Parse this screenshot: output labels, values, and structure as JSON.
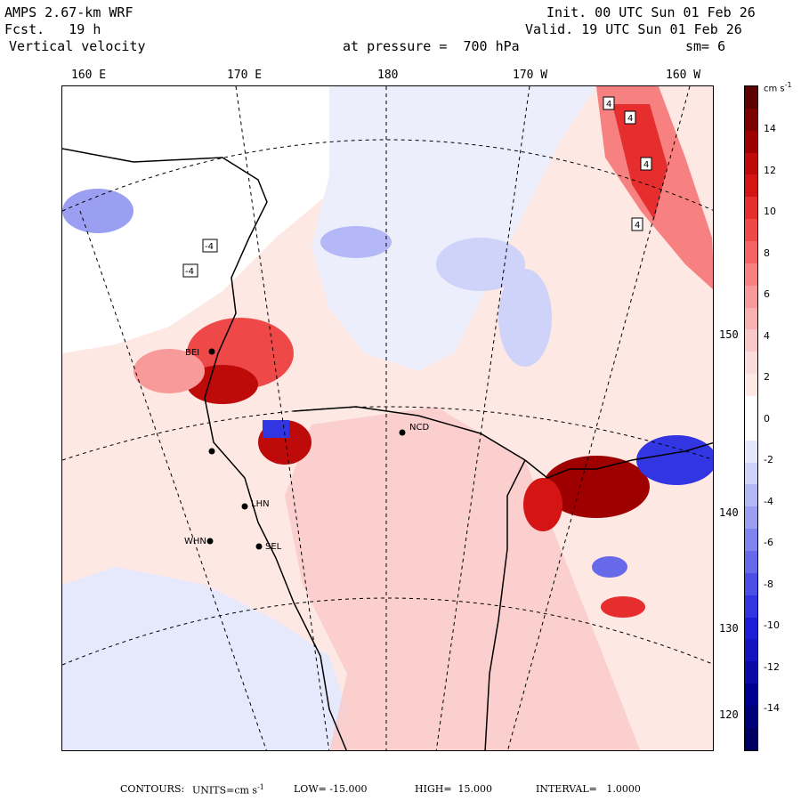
{
  "header": {
    "model": "AMPS 2.67-km WRF",
    "forecast": "Fcst.   19 h",
    "variable": "Vertical velocity",
    "init": "Init. 00 UTC Sun 01 Feb 26",
    "valid": "Valid. 19 UTC Sun 01 Feb 26",
    "pressure": "at pressure =  700 hPa",
    "smoothing": "sm= 6"
  },
  "longitude_labels": [
    "160 E",
    "170 E",
    "180",
    "170 W",
    "160 W"
  ],
  "latitude_labels": [
    "150 W",
    "140 W",
    "130 W",
    "120 W"
  ],
  "colorbar": {
    "units": "cm s",
    "units_exp": "-1",
    "tick_labels": [
      "14",
      "12",
      "10",
      "8",
      "6",
      "4",
      "2",
      "0",
      "-2",
      "-4",
      "-6",
      "-8",
      "-10",
      "-12",
      "-14"
    ],
    "colors_top_to_bottom": [
      "#5c0000",
      "#7d0000",
      "#9e0000",
      "#bf0a0a",
      "#d51414",
      "#e62e2e",
      "#ef4848",
      "#f46464",
      "#f78080",
      "#f89a9a",
      "#f8b2b2",
      "#f9c8c8",
      "#fbdcdc",
      "#fde8e4",
      "#ffffff",
      "#ffffff",
      "#e4e6fb",
      "#cfd2f9",
      "#b5b8f6",
      "#9b9ff2",
      "#8084ee",
      "#6669ea",
      "#4c4fe6",
      "#3236e2",
      "#1e1ed8",
      "#1414c0",
      "#0a0aa8",
      "#000090",
      "#00007a",
      "#000064"
    ]
  },
  "sites": [
    "BEI",
    "LHN",
    "WHN",
    "SEL",
    "NCD"
  ],
  "contour_labels": [
    "4",
    "4",
    "4",
    "4",
    "-4",
    "-4"
  ],
  "footer": {
    "contours_label": "CONTOURS:",
    "units_prefix": "UNITS=cm s",
    "units_exp": "-1",
    "low": "LOW= -15.000",
    "high": "HIGH=  15.000",
    "interval": "INTERVAL=   1.0000"
  }
}
